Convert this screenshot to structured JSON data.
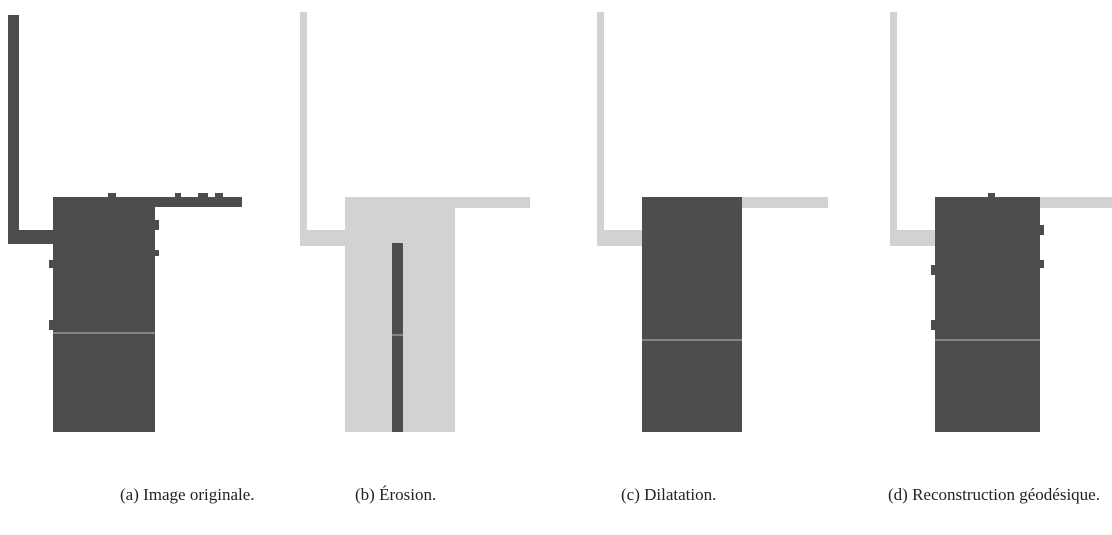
{
  "figure": {
    "subfigures": [
      {
        "caption": "(a) Image originale."
      },
      {
        "caption": "(b) Érosion."
      },
      {
        "caption": "(c) Dilatation."
      },
      {
        "caption": "(d) Reconstruction géodésique."
      }
    ]
  }
}
